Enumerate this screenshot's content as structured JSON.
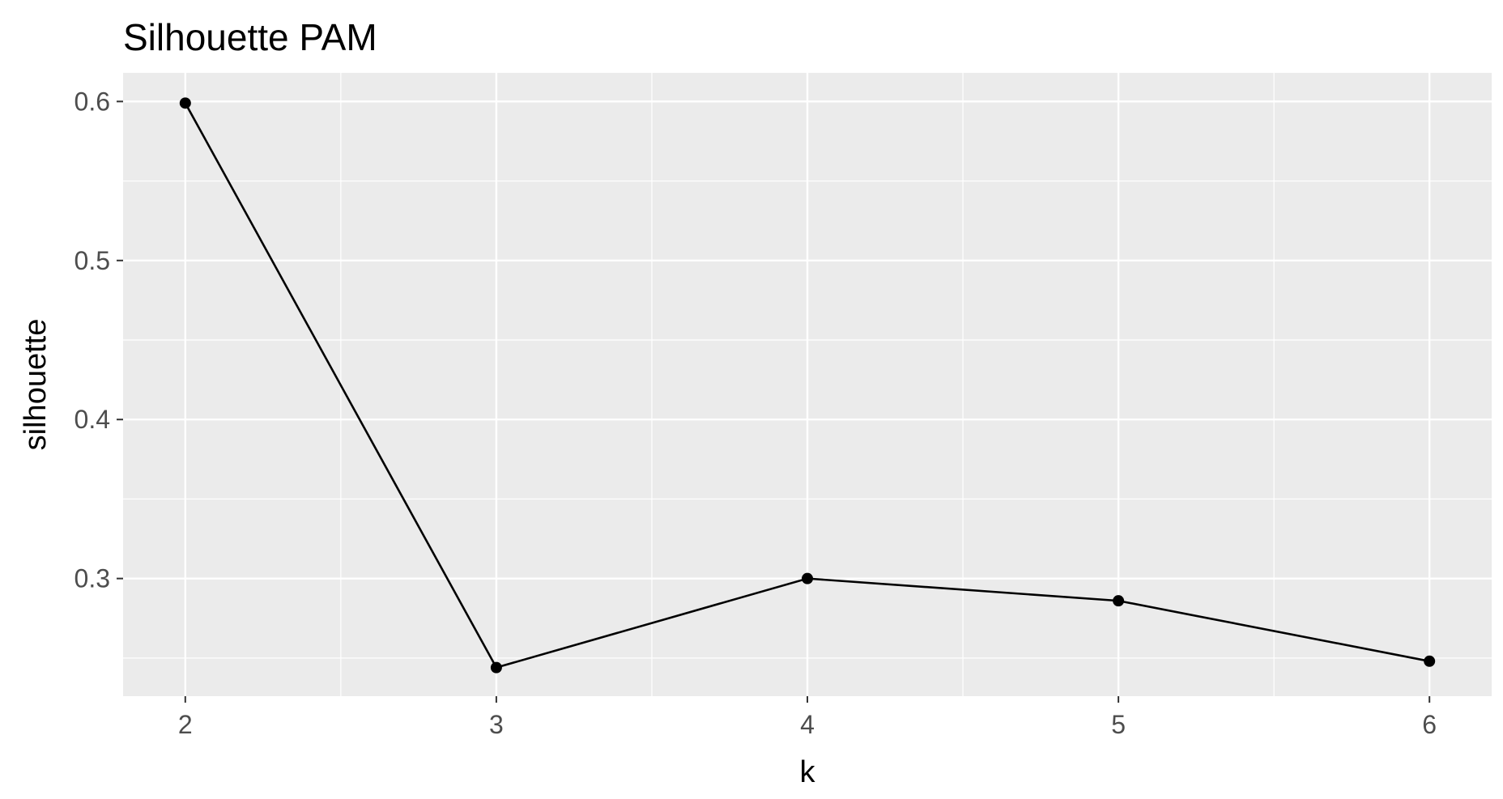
{
  "chart_data": {
    "type": "line",
    "title": "Silhouette PAM",
    "xlabel": "k",
    "ylabel": "silhouette",
    "x": [
      2,
      3,
      4,
      5,
      6
    ],
    "series": [
      {
        "values": [
          0.599,
          0.244,
          0.3,
          0.286,
          0.248
        ]
      }
    ],
    "xlim": [
      1.8,
      6.2
    ],
    "ylim": [
      0.226,
      0.618
    ],
    "x_ticks": [
      2,
      3,
      4,
      5,
      6
    ],
    "x_tick_labels": [
      "2",
      "3",
      "4",
      "5",
      "6"
    ],
    "y_ticks": [
      0.3,
      0.4,
      0.5,
      0.6
    ],
    "y_tick_labels": [
      "0.3",
      "0.4",
      "0.5",
      "0.6"
    ],
    "x_minor_ticks": [
      2.5,
      3.5,
      4.5,
      5.5
    ],
    "y_minor_ticks": [
      0.25,
      0.35,
      0.45,
      0.55
    ],
    "grid": true,
    "legend": "none",
    "colors": {
      "panel": "#EBEBEB",
      "grid": "#FFFFFF",
      "series": "#000000",
      "tick_text": "#4D4D4D"
    }
  }
}
